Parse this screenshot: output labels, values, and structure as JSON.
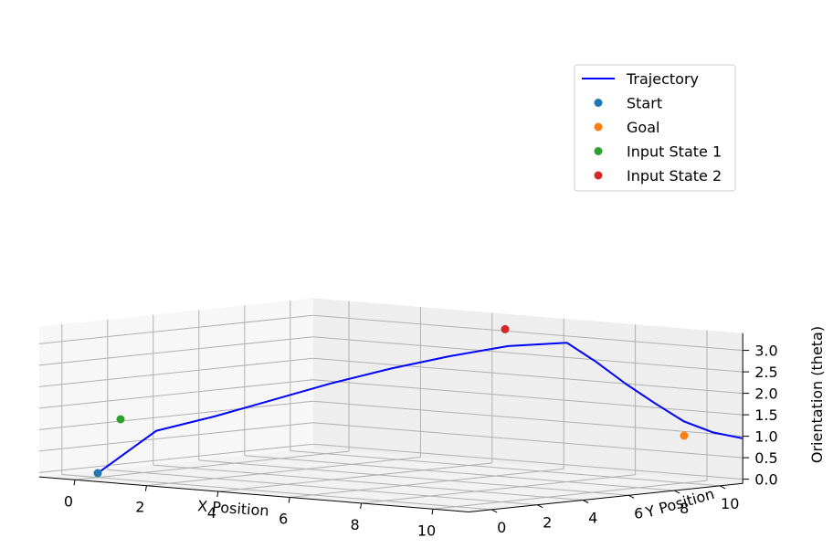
{
  "chart_data": {
    "type": "line",
    "projection": "3d",
    "xlabel": "X Position",
    "ylabel": "Y Position",
    "zlabel": "Orientation (theta)",
    "xticks": [
      "0",
      "2",
      "4",
      "6",
      "8",
      "10"
    ],
    "yticks": [
      "0",
      "2",
      "4",
      "6",
      "8",
      "10"
    ],
    "zticks": [
      "0.0",
      "0.5",
      "1.0",
      "1.5",
      "2.0",
      "2.5",
      "3.0"
    ],
    "xlim": [
      -1,
      11
    ],
    "ylim": [
      -1,
      11
    ],
    "zlim": [
      -0.1,
      3.4
    ],
    "grid": true,
    "legend_position": "upper right",
    "series": [
      {
        "name": "Trajectory",
        "kind": "line",
        "color": "#0000ff",
        "points": [
          [
            0,
            0,
            0
          ],
          [
            1,
            1,
            1
          ],
          [
            2,
            2,
            1.35
          ],
          [
            3,
            3,
            1.75
          ],
          [
            4,
            4,
            2.15
          ],
          [
            5,
            5,
            2.5
          ],
          [
            6,
            6,
            2.8
          ],
          [
            7,
            7,
            3.05
          ],
          [
            8,
            8,
            3.14
          ],
          [
            8.5,
            8.5,
            2.7
          ],
          [
            9,
            9,
            2.2
          ],
          [
            9.5,
            9.5,
            1.75
          ],
          [
            10,
            10,
            1.33
          ],
          [
            10.5,
            10.5,
            1.08
          ],
          [
            11,
            11,
            0.95
          ]
        ]
      },
      {
        "name": "Start",
        "kind": "scatter",
        "color": "#1f77b4",
        "points": [
          [
            0,
            0,
            0
          ]
        ]
      },
      {
        "name": "Goal",
        "kind": "scatter",
        "color": "#ff7f0e",
        "points": [
          [
            10,
            10,
            1.0
          ]
        ]
      },
      {
        "name": "Input State 1",
        "kind": "scatter",
        "color": "#2ca02c",
        "points": [
          [
            0,
            1,
            1.2
          ]
        ]
      },
      {
        "name": "Input State 2",
        "kind": "scatter",
        "color": "#d62728",
        "points": [
          [
            5,
            10,
            3.14
          ]
        ]
      }
    ]
  }
}
